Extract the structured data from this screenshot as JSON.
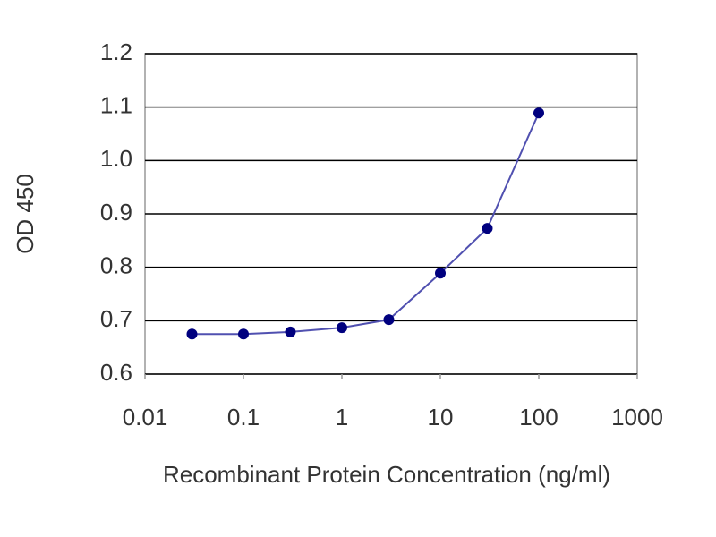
{
  "chart_data": {
    "type": "line",
    "xlabel": "Recombinant Protein Concentration (ng/ml)",
    "ylabel": "OD 450",
    "x": [
      0.03,
      0.1,
      0.3,
      1,
      3,
      10,
      30,
      100
    ],
    "series": [
      {
        "color": "#00007f",
        "values": [
          0.675,
          0.675,
          0.679,
          0.687,
          0.702,
          0.789,
          0.873,
          1.089
        ]
      }
    ],
    "xscale": "log",
    "xlim": [
      0.01,
      1000
    ],
    "xticks": [
      0.01,
      0.1,
      1,
      10,
      100,
      1000
    ],
    "ylim": [
      0.6,
      1.2
    ],
    "yticks": [
      0.6,
      0.7,
      0.8,
      0.9,
      {
        "value": 1,
        "label": "1.0"
      },
      1.1,
      1.2
    ],
    "grid": true
  }
}
